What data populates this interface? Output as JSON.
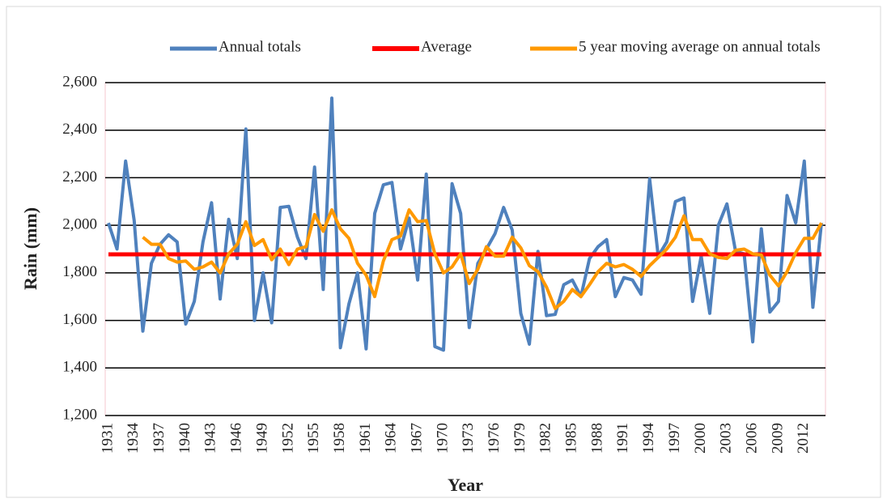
{
  "chart_data": {
    "type": "line",
    "y_label": "Rain (mm)",
    "x_label": "Year",
    "categories": [
      "1931",
      null,
      null,
      "1934",
      null,
      null,
      "1937",
      null,
      null,
      "1940",
      null,
      null,
      "1943",
      null,
      null,
      "1946",
      null,
      null,
      "1949",
      null,
      null,
      "1952",
      null,
      null,
      "1955",
      null,
      null,
      "1958",
      null,
      null,
      "1961",
      null,
      null,
      "1964",
      null,
      null,
      "1967",
      null,
      null,
      "1970",
      null,
      null,
      "1973",
      null,
      null,
      "1976",
      null,
      null,
      "1979",
      null,
      null,
      "1982",
      null,
      null,
      "1985",
      null,
      null,
      "1988",
      null,
      null,
      "1991",
      null,
      null,
      "1994",
      null,
      null,
      "1997",
      null,
      null,
      "2000",
      null,
      null,
      "2003",
      null,
      null,
      "2006",
      null,
      null,
      "2009",
      null,
      null,
      "2012",
      null,
      null
    ],
    "series": [
      {
        "name": "Annual totals",
        "color": "#4f81bd",
        "width": 4,
        "values": [
          2010,
          1900,
          2270,
          2020,
          1555,
          1840,
          1920,
          1960,
          1930,
          1585,
          1680,
          1930,
          2095,
          1690,
          2025,
          1860,
          2405,
          1600,
          1800,
          1590,
          2075,
          2080,
          1950,
          1860,
          2245,
          1730,
          2535,
          1485,
          1670,
          1800,
          1480,
          2050,
          2170,
          2180,
          1900,
          2030,
          1770,
          2215,
          1490,
          1475,
          2175,
          2050,
          1570,
          1840,
          1900,
          1965,
          2075,
          1980,
          1630,
          1500,
          1890,
          1620,
          1625,
          1750,
          1770,
          1700,
          1860,
          1910,
          1940,
          1700,
          1780,
          1770,
          1710,
          2195,
          1870,
          1930,
          2100,
          2115,
          1680,
          1870,
          1630,
          2000,
          2090,
          1890,
          1880,
          1510,
          1985,
          1635,
          1680,
          2125,
          2010,
          2270,
          1655,
          2010
        ]
      },
      {
        "name": "Average",
        "color": "#ff0000",
        "width": 5,
        "values": [
          1878,
          1878,
          1878,
          1878,
          1878,
          1878,
          1878,
          1878,
          1878,
          1878,
          1878,
          1878,
          1878,
          1878,
          1878,
          1878,
          1878,
          1878,
          1878,
          1878,
          1878,
          1878,
          1878,
          1878,
          1878,
          1878,
          1878,
          1878,
          1878,
          1878,
          1878,
          1878,
          1878,
          1878,
          1878,
          1878,
          1878,
          1878,
          1878,
          1878,
          1878,
          1878,
          1878,
          1878,
          1878,
          1878,
          1878,
          1878,
          1878,
          1878,
          1878,
          1878,
          1878,
          1878,
          1878,
          1878,
          1878,
          1878,
          1878,
          1878,
          1878,
          1878,
          1878,
          1878,
          1878,
          1878,
          1878,
          1878,
          1878,
          1878,
          1878,
          1878,
          1878,
          1878,
          1878,
          1878,
          1878,
          1878,
          1878,
          1878,
          1878,
          1878,
          1878,
          1878
        ]
      },
      {
        "name": "5 year moving average on annual totals",
        "color": "#ff9900",
        "width": 4,
        "values": [
          null,
          null,
          null,
          null,
          1950,
          1920,
          1920,
          1860,
          1845,
          1850,
          1815,
          1825,
          1845,
          1800,
          1880,
          1920,
          2015,
          1915,
          1940,
          1855,
          1900,
          1835,
          1900,
          1910,
          2045,
          1975,
          2065,
          1985,
          1945,
          1840,
          1790,
          1700,
          1850,
          1940,
          1955,
          2065,
          2015,
          2020,
          1880,
          1800,
          1825,
          1880,
          1755,
          1815,
          1910,
          1870,
          1870,
          1950,
          1905,
          1830,
          1805,
          1740,
          1650,
          1680,
          1730,
          1700,
          1750,
          1805,
          1840,
          1825,
          1835,
          1815,
          1785,
          1830,
          1865,
          1900,
          1950,
          2040,
          1940,
          1940,
          1880,
          1865,
          1860,
          1895,
          1900,
          1880,
          1875,
          1790,
          1745,
          1805,
          1885,
          1945,
          1945,
          2010
        ]
      }
    ],
    "ylim": [
      1200,
      2600
    ],
    "yticks": [
      {
        "value": 1200,
        "label": "1,200"
      },
      {
        "value": 1400,
        "label": "1,400"
      },
      {
        "value": 1600,
        "label": "1,600"
      },
      {
        "value": 1800,
        "label": "1,800"
      },
      {
        "value": 2000,
        "label": "2,000"
      },
      {
        "value": 2200,
        "label": "2,200"
      },
      {
        "value": 2400,
        "label": "2,400"
      },
      {
        "value": 2600,
        "label": "2,600"
      }
    ],
    "grid": true,
    "grid_color": "#000000",
    "legend": "top"
  }
}
